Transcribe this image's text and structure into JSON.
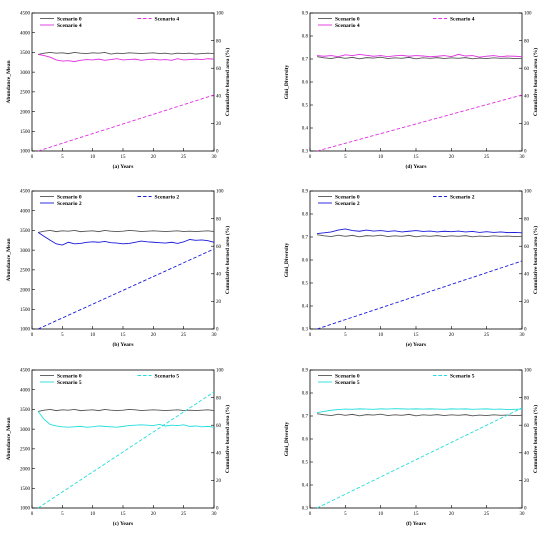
{
  "chart_data": [
    {
      "panel": "a",
      "type": "line",
      "caption": "(a) Years",
      "ylabel": "Abundance_Mean",
      "y2label": "Cumulative burned area (%)",
      "xlim": [
        0,
        30
      ],
      "ylim": [
        1000,
        4500
      ],
      "y2lim": [
        0,
        100
      ],
      "xticks": [
        0,
        5,
        10,
        15,
        20,
        25,
        30
      ],
      "yticks": [
        1000,
        1500,
        2000,
        2500,
        3000,
        3500,
        4000,
        4500
      ],
      "y2ticks": [
        0,
        20,
        40,
        60,
        80,
        100
      ],
      "x": [
        1,
        2,
        3,
        4,
        5,
        6,
        7,
        8,
        9,
        10,
        11,
        12,
        13,
        14,
        15,
        16,
        17,
        18,
        19,
        20,
        21,
        22,
        23,
        24,
        25,
        26,
        27,
        28,
        29,
        30
      ],
      "series": [
        {
          "name": "Scenario 0",
          "axis": "left",
          "style": "solid",
          "color": "#555555",
          "values": [
            3450,
            3480,
            3500,
            3480,
            3490,
            3470,
            3500,
            3480,
            3470,
            3490,
            3480,
            3500,
            3460,
            3480,
            3470,
            3490,
            3480,
            3470,
            3480,
            3490,
            3470,
            3480,
            3460,
            3480,
            3470,
            3480,
            3460,
            3470,
            3480,
            3470
          ]
        },
        {
          "name": "Scenario 4",
          "axis": "left",
          "style": "solid",
          "color": "#e030e0",
          "values": [
            3450,
            3420,
            3380,
            3310,
            3280,
            3290,
            3270,
            3300,
            3320,
            3310,
            3330,
            3300,
            3320,
            3340,
            3310,
            3320,
            3330,
            3300,
            3320,
            3330,
            3310,
            3320,
            3300,
            3340,
            3310,
            3320,
            3330,
            3320,
            3340,
            3330
          ]
        },
        {
          "name": "Scenario 4",
          "axis": "right",
          "style": "dashed",
          "color": "#e030e0",
          "values": [
            0,
            1.4,
            2.8,
            4.2,
            5.6,
            7.0,
            8.4,
            9.8,
            11.2,
            12.6,
            14.0,
            15.4,
            16.8,
            18.2,
            19.6,
            21.0,
            22.4,
            23.8,
            25.2,
            26.6,
            28.0,
            29.4,
            30.8,
            32.2,
            33.6,
            35.0,
            36.4,
            37.8,
            39.2,
            40.6
          ]
        }
      ]
    },
    {
      "panel": "d",
      "type": "line",
      "caption": "(d) Years",
      "ylabel": "Gini_Diversity",
      "y2label": "Cumulative burned area (%)",
      "xlim": [
        0,
        30
      ],
      "ylim": [
        0.3,
        0.9
      ],
      "y2lim": [
        0,
        100
      ],
      "xticks": [
        0,
        5,
        10,
        15,
        20,
        25,
        30
      ],
      "yticks": [
        0.3,
        0.4,
        0.5,
        0.6,
        0.7,
        0.8,
        0.9
      ],
      "y2ticks": [
        0,
        20,
        40,
        60,
        80,
        100
      ],
      "x": [
        1,
        2,
        3,
        4,
        5,
        6,
        7,
        8,
        9,
        10,
        11,
        12,
        13,
        14,
        15,
        16,
        17,
        18,
        19,
        20,
        21,
        22,
        23,
        24,
        25,
        26,
        27,
        28,
        29,
        30
      ],
      "series": [
        {
          "name": "Scenario 0",
          "axis": "left",
          "style": "solid",
          "color": "#555555",
          "values": [
            0.71,
            0.705,
            0.702,
            0.708,
            0.703,
            0.707,
            0.701,
            0.706,
            0.704,
            0.708,
            0.702,
            0.705,
            0.703,
            0.707,
            0.701,
            0.705,
            0.703,
            0.706,
            0.702,
            0.705,
            0.703,
            0.706,
            0.701,
            0.704,
            0.702,
            0.705,
            0.703,
            0.704,
            0.702,
            0.703
          ]
        },
        {
          "name": "Scenario 4",
          "axis": "left",
          "style": "solid",
          "color": "#e030e0",
          "values": [
            0.715,
            0.712,
            0.715,
            0.71,
            0.718,
            0.715,
            0.72,
            0.716,
            0.712,
            0.715,
            0.71,
            0.714,
            0.716,
            0.712,
            0.715,
            0.713,
            0.71,
            0.712,
            0.715,
            0.71,
            0.72,
            0.713,
            0.715,
            0.708,
            0.712,
            0.715,
            0.71,
            0.713,
            0.712,
            0.71
          ]
        },
        {
          "name": "Scenario 4",
          "axis": "right",
          "style": "dashed",
          "color": "#e030e0",
          "values": [
            0,
            1.4,
            2.8,
            4.2,
            5.6,
            7.0,
            8.4,
            9.8,
            11.2,
            12.6,
            14.0,
            15.4,
            16.8,
            18.2,
            19.6,
            21.0,
            22.4,
            23.8,
            25.2,
            26.6,
            28.0,
            29.4,
            30.8,
            32.2,
            33.6,
            35.0,
            36.4,
            37.8,
            39.2,
            40.6
          ]
        }
      ]
    },
    {
      "panel": "b",
      "type": "line",
      "caption": "(b) Years",
      "ylabel": "Abundance_Mean",
      "y2label": "Cumulative burned area (%)",
      "xlim": [
        0,
        30
      ],
      "ylim": [
        1000,
        4500
      ],
      "y2lim": [
        0,
        100
      ],
      "xticks": [
        0,
        5,
        10,
        15,
        20,
        25,
        30
      ],
      "yticks": [
        1000,
        1500,
        2000,
        2500,
        3000,
        3500,
        4000,
        4500
      ],
      "y2ticks": [
        0,
        20,
        40,
        60,
        80,
        100
      ],
      "x": [
        1,
        2,
        3,
        4,
        5,
        6,
        7,
        8,
        9,
        10,
        11,
        12,
        13,
        14,
        15,
        16,
        17,
        18,
        19,
        20,
        21,
        22,
        23,
        24,
        25,
        26,
        27,
        28,
        29,
        30
      ],
      "series": [
        {
          "name": "Scenario 0",
          "axis": "left",
          "style": "solid",
          "color": "#555555",
          "values": [
            3450,
            3480,
            3500,
            3470,
            3490,
            3480,
            3500,
            3470,
            3480,
            3490,
            3470,
            3500,
            3480,
            3470,
            3480,
            3500,
            3490,
            3470,
            3480,
            3490,
            3480,
            3470,
            3480,
            3490,
            3470,
            3480,
            3470,
            3480,
            3490,
            3470
          ]
        },
        {
          "name": "Scenario 2",
          "axis": "left",
          "style": "solid",
          "color": "#1a1adb",
          "values": [
            3450,
            3350,
            3250,
            3160,
            3130,
            3200,
            3160,
            3170,
            3200,
            3210,
            3200,
            3220,
            3190,
            3180,
            3160,
            3170,
            3200,
            3230,
            3210,
            3200,
            3190,
            3180,
            3200,
            3170,
            3210,
            3270,
            3250,
            3260,
            3240,
            3200
          ]
        },
        {
          "name": "Scenario 2",
          "axis": "right",
          "style": "dashed",
          "color": "#1a1adb",
          "values": [
            0,
            2.0,
            4.0,
            6.0,
            8.0,
            10.0,
            12.0,
            14.0,
            16.0,
            18.0,
            20.0,
            22.0,
            24.0,
            26.0,
            28.0,
            30.0,
            32.0,
            34.0,
            36.0,
            38.0,
            40.0,
            42.0,
            44.0,
            46.0,
            48.0,
            50.0,
            52.0,
            54.0,
            56.0,
            58.0
          ]
        }
      ]
    },
    {
      "panel": "e",
      "type": "line",
      "caption": "(e) Years",
      "ylabel": "Gini_Diversity",
      "y2label": "Cumulative burned area (%)",
      "xlim": [
        0,
        30
      ],
      "ylim": [
        0.3,
        0.9
      ],
      "y2lim": [
        0,
        100
      ],
      "xticks": [
        0,
        5,
        10,
        15,
        20,
        25,
        30
      ],
      "yticks": [
        0.3,
        0.4,
        0.5,
        0.6,
        0.7,
        0.8,
        0.9
      ],
      "y2ticks": [
        0,
        20,
        40,
        60,
        80,
        100
      ],
      "x": [
        1,
        2,
        3,
        4,
        5,
        6,
        7,
        8,
        9,
        10,
        11,
        12,
        13,
        14,
        15,
        16,
        17,
        18,
        19,
        20,
        21,
        22,
        23,
        24,
        25,
        26,
        27,
        28,
        29,
        30
      ],
      "series": [
        {
          "name": "Scenario 0",
          "axis": "left",
          "style": "solid",
          "color": "#555555",
          "values": [
            0.71,
            0.705,
            0.702,
            0.708,
            0.703,
            0.707,
            0.701,
            0.706,
            0.704,
            0.708,
            0.702,
            0.705,
            0.703,
            0.707,
            0.701,
            0.705,
            0.703,
            0.706,
            0.702,
            0.705,
            0.703,
            0.706,
            0.701,
            0.704,
            0.702,
            0.705,
            0.703,
            0.704,
            0.702,
            0.703
          ]
        },
        {
          "name": "Scenario 2",
          "axis": "left",
          "style": "solid",
          "color": "#1a1adb",
          "values": [
            0.715,
            0.718,
            0.722,
            0.73,
            0.735,
            0.728,
            0.725,
            0.73,
            0.726,
            0.728,
            0.724,
            0.727,
            0.722,
            0.725,
            0.728,
            0.724,
            0.726,
            0.722,
            0.725,
            0.723,
            0.726,
            0.722,
            0.724,
            0.72,
            0.723,
            0.72,
            0.722,
            0.719,
            0.72,
            0.718
          ]
        },
        {
          "name": "Scenario 2",
          "axis": "right",
          "style": "dashed",
          "color": "#1a1adb",
          "values": [
            0,
            1.7,
            3.4,
            5.1,
            6.8,
            8.5,
            10.2,
            11.9,
            13.6,
            15.3,
            17.0,
            18.7,
            20.4,
            22.1,
            23.8,
            25.5,
            27.2,
            28.9,
            30.6,
            32.3,
            34.0,
            35.7,
            37.4,
            39.1,
            40.8,
            42.5,
            44.2,
            45.9,
            47.6,
            49.3
          ]
        }
      ]
    },
    {
      "panel": "c",
      "type": "line",
      "caption": "(c) Years",
      "ylabel": "Abundance_Mean",
      "y2label": "Cumulative burned area (%)",
      "xlim": [
        0,
        30
      ],
      "ylim": [
        1000,
        4500
      ],
      "y2lim": [
        0,
        100
      ],
      "xticks": [
        0,
        5,
        10,
        15,
        20,
        25,
        30
      ],
      "yticks": [
        1000,
        1500,
        2000,
        2500,
        3000,
        3500,
        4000,
        4500
      ],
      "y2ticks": [
        0,
        20,
        40,
        60,
        80,
        100
      ],
      "x": [
        1,
        2,
        3,
        4,
        5,
        6,
        7,
        8,
        9,
        10,
        11,
        12,
        13,
        14,
        15,
        16,
        17,
        18,
        19,
        20,
        21,
        22,
        23,
        24,
        25,
        26,
        27,
        28,
        29,
        30
      ],
      "series": [
        {
          "name": "Scenario 0",
          "axis": "left",
          "style": "solid",
          "color": "#555555",
          "values": [
            3450,
            3480,
            3500,
            3470,
            3490,
            3480,
            3500,
            3470,
            3480,
            3490,
            3470,
            3500,
            3480,
            3470,
            3480,
            3500,
            3490,
            3470,
            3480,
            3490,
            3480,
            3470,
            3480,
            3490,
            3470,
            3480,
            3470,
            3480,
            3490,
            3470
          ]
        },
        {
          "name": "Scenario 5",
          "axis": "left",
          "style": "solid",
          "color": "#22dddd",
          "values": [
            3450,
            3250,
            3120,
            3080,
            3060,
            3050,
            3060,
            3070,
            3050,
            3060,
            3080,
            3070,
            3060,
            3050,
            3070,
            3090,
            3100,
            3110,
            3100,
            3090,
            3120,
            3080,
            3100,
            3090,
            3110,
            3070,
            3080,
            3060,
            3070,
            3050
          ]
        },
        {
          "name": "Scenario 5",
          "axis": "right",
          "style": "dashed",
          "color": "#22dddd",
          "values": [
            0,
            2.9,
            5.8,
            8.7,
            11.6,
            14.5,
            17.4,
            20.3,
            23.2,
            26.1,
            29.0,
            31.9,
            34.8,
            37.7,
            40.6,
            43.5,
            46.4,
            49.3,
            52.2,
            55.1,
            58.0,
            60.9,
            63.8,
            66.7,
            69.6,
            72.5,
            75.4,
            78.3,
            81.2,
            84.1
          ]
        }
      ]
    },
    {
      "panel": "f",
      "type": "line",
      "caption": "(f) Years",
      "ylabel": "Gini_Diversity",
      "y2label": "Cumulative burned area (%)",
      "xlim": [
        0,
        30
      ],
      "ylim": [
        0.3,
        0.9
      ],
      "y2lim": [
        0,
        100
      ],
      "xticks": [
        0,
        5,
        10,
        15,
        20,
        25,
        30
      ],
      "yticks": [
        0.3,
        0.4,
        0.5,
        0.6,
        0.7,
        0.8,
        0.9
      ],
      "y2ticks": [
        0,
        20,
        40,
        60,
        80,
        100
      ],
      "x": [
        1,
        2,
        3,
        4,
        5,
        6,
        7,
        8,
        9,
        10,
        11,
        12,
        13,
        14,
        15,
        16,
        17,
        18,
        19,
        20,
        21,
        22,
        23,
        24,
        25,
        26,
        27,
        28,
        29,
        30
      ],
      "series": [
        {
          "name": "Scenario 0",
          "axis": "left",
          "style": "solid",
          "color": "#555555",
          "values": [
            0.71,
            0.705,
            0.702,
            0.708,
            0.703,
            0.707,
            0.701,
            0.706,
            0.704,
            0.708,
            0.702,
            0.705,
            0.703,
            0.707,
            0.701,
            0.705,
            0.703,
            0.706,
            0.702,
            0.705,
            0.703,
            0.706,
            0.701,
            0.704,
            0.702,
            0.705,
            0.703,
            0.704,
            0.702,
            0.703
          ]
        },
        {
          "name": "Scenario 5",
          "axis": "left",
          "style": "solid",
          "color": "#22dddd",
          "values": [
            0.715,
            0.72,
            0.725,
            0.728,
            0.73,
            0.729,
            0.731,
            0.73,
            0.729,
            0.731,
            0.73,
            0.732,
            0.731,
            0.73,
            0.731,
            0.73,
            0.731,
            0.73,
            0.729,
            0.731,
            0.73,
            0.731,
            0.729,
            0.73,
            0.731,
            0.729,
            0.73,
            0.728,
            0.729,
            0.73
          ]
        },
        {
          "name": "Scenario 5",
          "axis": "right",
          "style": "dashed",
          "color": "#22dddd",
          "values": [
            0,
            2.5,
            5.0,
            7.5,
            10.0,
            12.5,
            15.0,
            17.5,
            20.0,
            22.5,
            25.0,
            27.5,
            30.0,
            32.5,
            35.0,
            37.5,
            40.0,
            42.5,
            45.0,
            47.5,
            50.0,
            52.5,
            55.0,
            57.5,
            60.0,
            62.5,
            65.0,
            67.5,
            70.0,
            72.5
          ]
        }
      ]
    }
  ]
}
